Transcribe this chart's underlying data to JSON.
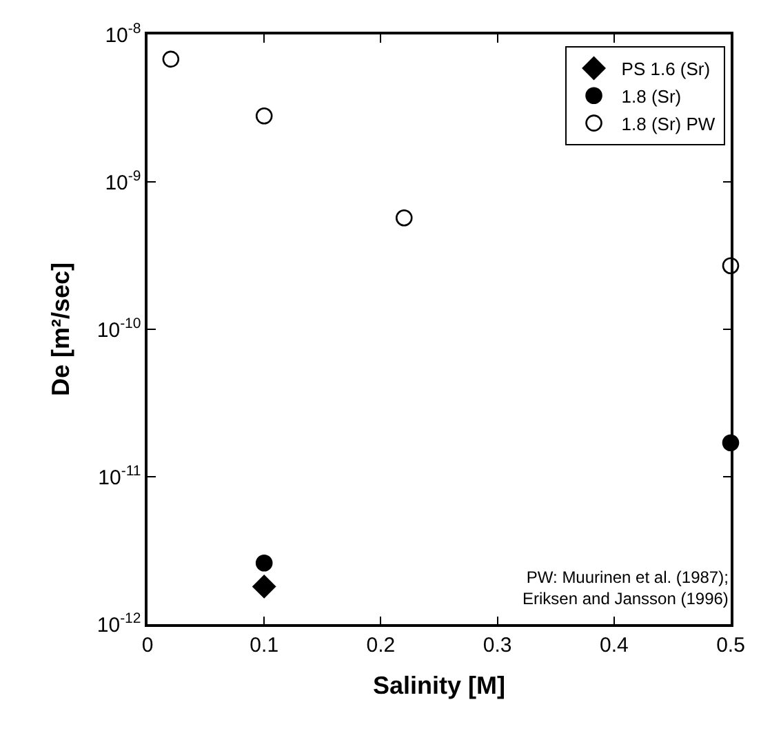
{
  "chart_data": {
    "type": "scatter",
    "xlabel": "Salinity [M]",
    "ylabel": "De [m²/sec]",
    "log": "y",
    "xlim": [
      0,
      0.5
    ],
    "xticks": [
      0,
      0.1,
      0.2,
      0.3,
      0.4,
      0.5
    ],
    "ylim": [
      1e-12,
      1e-08
    ],
    "yticks": [
      {
        "value": 1e-12,
        "label": "10$^{-12}$"
      },
      {
        "value": 1e-11,
        "label": "10$^{-11}$"
      },
      {
        "value": 1e-10,
        "label": "10$^{-10}$"
      },
      {
        "value": 1e-09,
        "label": "10$^{-9}$"
      },
      {
        "value": 1e-08,
        "label": "10$^{-8}$"
      }
    ],
    "legend": "top right",
    "series": [
      {
        "name": "PS 1.6 (Sr)",
        "color": "#000000",
        "marker": "diamond",
        "x": [
          0.1
        ],
        "values": [
          1.8e-12
        ]
      },
      {
        "name": "1.8 (Sr)",
        "color": "#000000",
        "marker": "circle",
        "x": [
          0.1,
          0.5
        ],
        "values": [
          2.6e-12,
          1.7e-11
        ]
      },
      {
        "name": "1.8 (Sr) PW",
        "color": "#ffffff",
        "marker": "circle",
        "x": [
          0.02,
          0.1,
          0.22,
          0.5
        ],
        "values": [
          6.8e-09,
          2.8e-09,
          5.7e-10,
          2.7e-10
        ]
      }
    ],
    "annotations": [
      "PW: Muurinen et al. (1987);\nEriksen and Jansson (1996)"
    ]
  }
}
